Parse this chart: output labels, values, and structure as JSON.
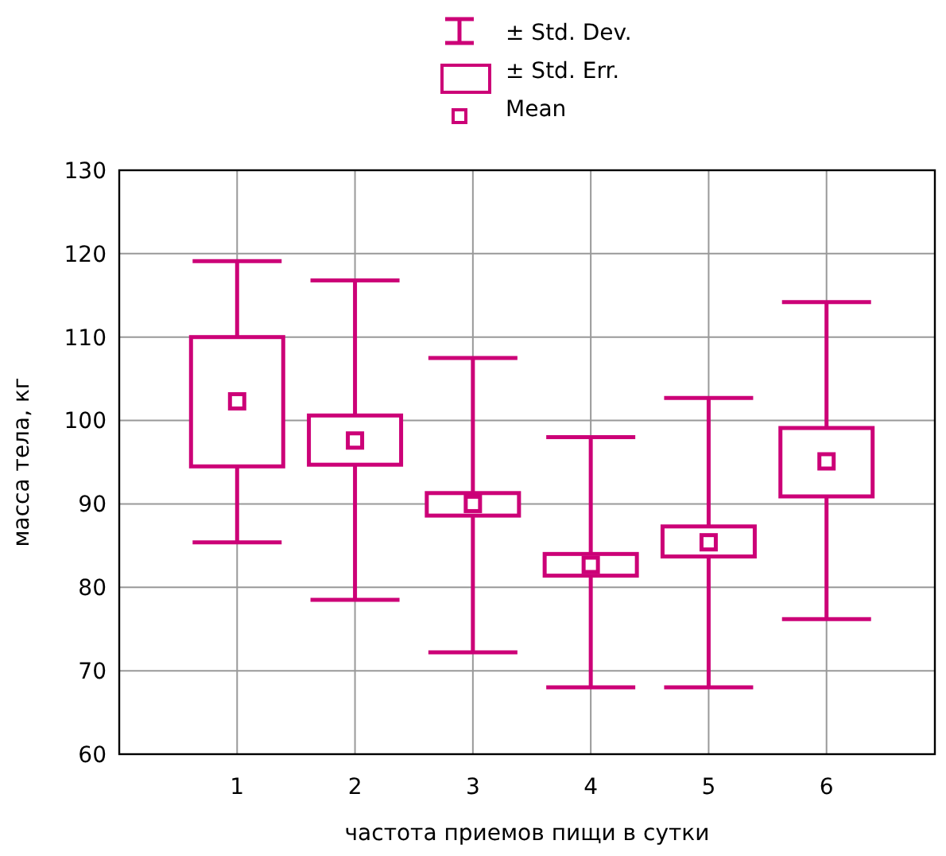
{
  "chart_data": {
    "type": "box",
    "xlabel": "частота приемов пищи в сутки",
    "ylabel": "масса тела, кг",
    "categories": [
      "1",
      "2",
      "3",
      "4",
      "5",
      "6"
    ],
    "color": "#cc0077",
    "boxes": [
      {
        "low": 85.4,
        "q1": 94.5,
        "median": 102.3,
        "q3": 110,
        "high": 119.1
      },
      {
        "low": 78.5,
        "q1": 94.7,
        "median": 97.6,
        "q3": 100.6,
        "high": 116.8
      },
      {
        "low": 72.2,
        "q1": 88.6,
        "median": 90,
        "q3": 91.3,
        "high": 107.5
      },
      {
        "low": 68,
        "q1": 81.4,
        "median": 82.7,
        "q3": 84,
        "high": 98
      },
      {
        "low": 68,
        "q1": 83.7,
        "median": 85.4,
        "q3": 87.3,
        "high": 102.7
      },
      {
        "low": 76.2,
        "q1": 90.9,
        "median": 95.1,
        "q3": 99.1,
        "high": 114.2
      }
    ],
    "ylim": [
      60,
      130
    ],
    "yticks": [
      60,
      70,
      80,
      90,
      100,
      110,
      120,
      130
    ],
    "grid": true,
    "marker": "square",
    "annotations": [
      "± Std. Dev.",
      "± Std. Err.",
      "Mean"
    ]
  }
}
